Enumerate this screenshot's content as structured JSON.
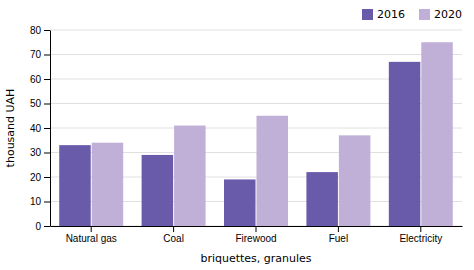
{
  "chart_data": {
    "type": "bar",
    "xlabel": "briquettes, granules",
    "ylabel": "thousand UAH",
    "categories": [
      "Natural gas",
      "Coal",
      "Firewood",
      "Fuel",
      "Electricity"
    ],
    "series": [
      {
        "name": "2016",
        "color": "#6a5aaa",
        "values": [
          33,
          29,
          19,
          22,
          67
        ]
      },
      {
        "name": "2020",
        "color": "#c0b0d8",
        "values": [
          34,
          41,
          45,
          37,
          75
        ]
      }
    ],
    "ylim": [
      0,
      80
    ],
    "yticks": [
      0,
      10,
      20,
      30,
      40,
      50,
      60,
      70,
      80
    ],
    "grid": true,
    "legend": "upper right"
  }
}
